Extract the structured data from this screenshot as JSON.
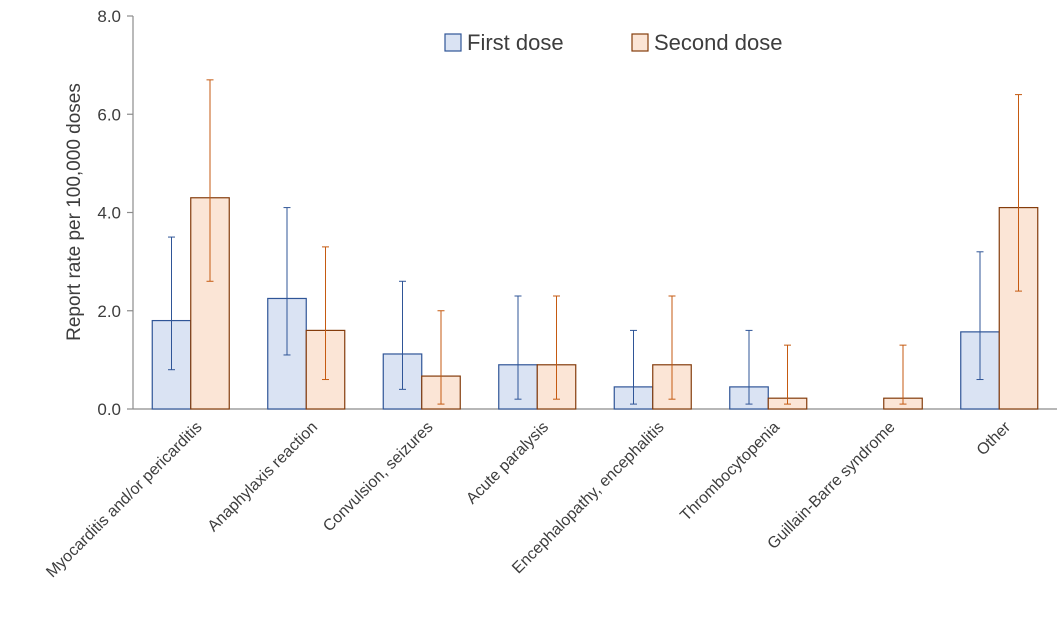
{
  "chart_data": {
    "type": "bar",
    "title": "",
    "xlabel": "",
    "ylabel": "Report rate per 100,000 doses",
    "ylim": [
      0,
      8
    ],
    "yticks": [
      "0.0",
      "2.0",
      "4.0",
      "6.0",
      "8.0"
    ],
    "ytick_values": [
      0,
      2,
      4,
      6,
      8
    ],
    "grid": false,
    "legend_position": "top-center",
    "error_bars": true,
    "categories": [
      "Myocarditis and/or pericarditis",
      "Anaphylaxis reaction",
      "Convulsion, seizures",
      "Acute paralysis",
      "Encephalopathy, encephalitis",
      "Thrombocytopenia",
      "Guillain-Barre syndrome",
      "Other"
    ],
    "series": [
      {
        "name": "First dose",
        "fill": "#dae3f3",
        "stroke": "#2f5597",
        "values": [
          1.8,
          2.25,
          1.12,
          0.9,
          0.45,
          0.45,
          0.0,
          1.57
        ],
        "err_low": [
          0.8,
          1.1,
          0.4,
          0.2,
          0.1,
          0.1,
          null,
          0.6
        ],
        "err_high": [
          3.5,
          4.1,
          2.6,
          2.3,
          1.6,
          1.6,
          null,
          3.2
        ]
      },
      {
        "name": "Second dose",
        "fill": "#fbe5d6",
        "stroke": "#843c0c",
        "err_color": "#c55a11",
        "values": [
          4.3,
          1.6,
          0.67,
          0.9,
          0.9,
          0.22,
          0.22,
          4.1
        ],
        "err_low": [
          2.6,
          0.6,
          0.1,
          0.2,
          0.2,
          0.1,
          0.1,
          2.4
        ],
        "err_high": [
          6.7,
          3.3,
          2.0,
          2.3,
          2.3,
          1.3,
          1.3,
          6.4
        ]
      }
    ]
  }
}
